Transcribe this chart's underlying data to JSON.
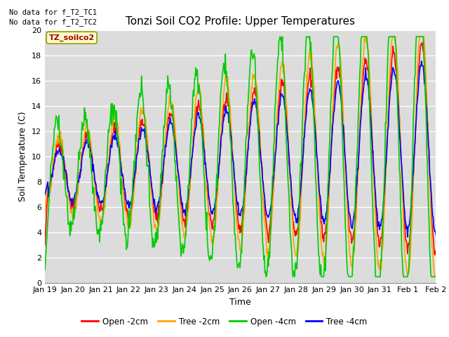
{
  "title": "Tonzi Soil CO2 Profile: Upper Temperatures",
  "xlabel": "Time",
  "ylabel": "Soil Temperature (C)",
  "no_data_text_1": "No data for f_T2_TC1",
  "no_data_text_2": "No data for f_T2_TC2",
  "legend_label_text": "TZ_soilco2",
  "ylim": [
    0,
    20
  ],
  "yticks": [
    0,
    2,
    4,
    6,
    8,
    10,
    12,
    14,
    16,
    18,
    20
  ],
  "xtick_labels": [
    "Jan 19",
    "Jan 20",
    "Jan 21",
    "Jan 22",
    "Jan 23",
    "Jan 24",
    "Jan 25",
    "Jan 26",
    "Jan 27",
    "Jan 28",
    "Jan 29",
    "Jan 30",
    "Jan 31",
    "Feb 1",
    "Feb 2"
  ],
  "line_colors": {
    "open2": "#FF0000",
    "tree2": "#FFA500",
    "open4": "#00CC00",
    "tree4": "#0000FF"
  },
  "legend_entries": [
    "Open -2cm",
    "Tree -2cm",
    "Open -4cm",
    "Tree -4cm"
  ],
  "bg_color": "#DCDCDC",
  "title_fontsize": 11,
  "axis_fontsize": 9,
  "tick_fontsize": 8,
  "linewidth": 1.2
}
